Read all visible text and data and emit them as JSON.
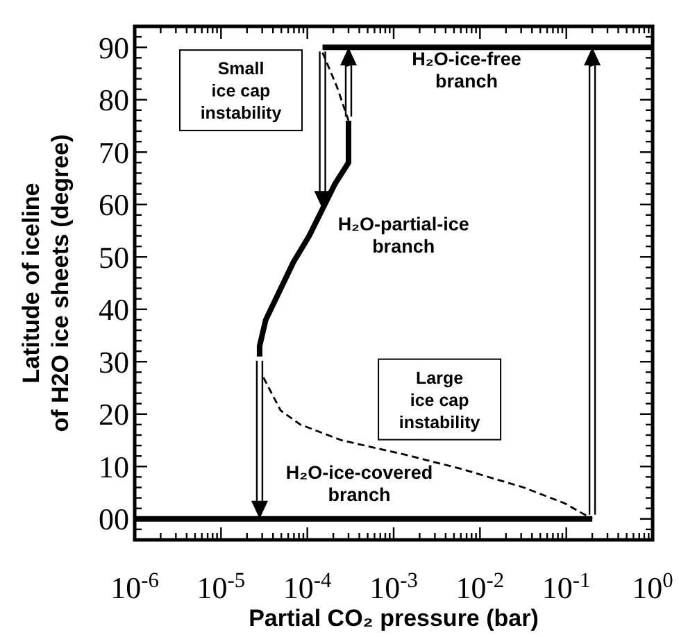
{
  "chart_data": {
    "type": "line",
    "xlabel": "Partial CO₂ pressure (bar)",
    "ylabel": "Latitude of iceline\nof H2O ice sheets (degree)",
    "log": "x",
    "grid": false,
    "marker": "none",
    "xlim": [
      1e-06,
      1
    ],
    "ylim": [
      -4,
      94
    ],
    "xticks": [
      {
        "value": 1e-06,
        "label": "10$^{-6}$"
      },
      {
        "value": 2e-06,
        "label": null
      },
      {
        "value": 3e-06,
        "label": null
      },
      {
        "value": 4e-06,
        "label": null
      },
      {
        "value": 5e-06,
        "label": null
      },
      {
        "value": 6e-06,
        "label": null
      },
      {
        "value": 7e-06,
        "label": null
      },
      {
        "value": 8e-06,
        "label": null
      },
      {
        "value": 9e-06,
        "label": null
      },
      {
        "value": 1e-05,
        "label": "10$^{-5}$"
      },
      {
        "value": 2e-05,
        "label": null
      },
      {
        "value": 3e-05,
        "label": null
      },
      {
        "value": 4e-05,
        "label": null
      },
      {
        "value": 5e-05,
        "label": null
      },
      {
        "value": 6e-05,
        "label": null
      },
      {
        "value": 7e-05,
        "label": null
      },
      {
        "value": 8e-05,
        "label": null
      },
      {
        "value": 9e-05,
        "label": null
      },
      {
        "value": 0.0001,
        "label": "10$^{-4}$"
      },
      {
        "value": 0.0002,
        "label": null
      },
      {
        "value": 0.0003,
        "label": null
      },
      {
        "value": 0.0004,
        "label": null
      },
      {
        "value": 0.0005,
        "label": null
      },
      {
        "value": 0.0006,
        "label": null
      },
      {
        "value": 0.0007,
        "label": null
      },
      {
        "value": 0.0008,
        "label": null
      },
      {
        "value": 0.0009,
        "label": null
      },
      {
        "value": 0.001,
        "label": "10$^{-3}$"
      },
      {
        "value": 0.002,
        "label": null
      },
      {
        "value": 0.003,
        "label": null
      },
      {
        "value": 0.004,
        "label": null
      },
      {
        "value": 0.005,
        "label": null
      },
      {
        "value": 0.006,
        "label": null
      },
      {
        "value": 0.007,
        "label": null
      },
      {
        "value": 0.008,
        "label": null
      },
      {
        "value": 0.009,
        "label": null
      },
      {
        "value": 0.01,
        "label": "10$^{-2}$"
      },
      {
        "value": 0.02,
        "label": null
      },
      {
        "value": 0.03,
        "label": null
      },
      {
        "value": 0.04,
        "label": null
      },
      {
        "value": 0.05,
        "label": null
      },
      {
        "value": 0.06,
        "label": null
      },
      {
        "value": 0.07,
        "label": null
      },
      {
        "value": 0.08,
        "label": null
      },
      {
        "value": 0.09,
        "label": null
      },
      {
        "value": 0.1,
        "label": "10$^{-1}$"
      },
      {
        "value": 0.2,
        "label": null
      },
      {
        "value": 0.3,
        "label": null
      },
      {
        "value": 0.4,
        "label": null
      },
      {
        "value": 0.5,
        "label": null
      },
      {
        "value": 0.6,
        "label": null
      },
      {
        "value": 0.7,
        "label": null
      },
      {
        "value": 0.8,
        "label": null
      },
      {
        "value": 0.9,
        "label": null
      },
      {
        "value": 1,
        "label": "10$^{0}$"
      }
    ],
    "yticks": [
      {
        "value": -2,
        "label": null
      },
      {
        "value": 0,
        "label": "00"
      },
      {
        "value": 2,
        "label": null
      },
      {
        "value": 4,
        "label": null
      },
      {
        "value": 6,
        "label": null
      },
      {
        "value": 8,
        "label": null
      },
      10,
      {
        "value": 12,
        "label": null
      },
      {
        "value": 14,
        "label": null
      },
      {
        "value": 16,
        "label": null
      },
      {
        "value": 18,
        "label": null
      },
      20,
      {
        "value": 22,
        "label": null
      },
      {
        "value": 24,
        "label": null
      },
      {
        "value": 26,
        "label": null
      },
      {
        "value": 28,
        "label": null
      },
      30,
      {
        "value": 32,
        "label": null
      },
      {
        "value": 34,
        "label": null
      },
      {
        "value": 36,
        "label": null
      },
      {
        "value": 38,
        "label": null
      },
      40,
      {
        "value": 42,
        "label": null
      },
      {
        "value": 44,
        "label": null
      },
      {
        "value": 46,
        "label": null
      },
      {
        "value": 48,
        "label": null
      },
      50,
      {
        "value": 52,
        "label": null
      },
      {
        "value": 54,
        "label": null
      },
      {
        "value": 56,
        "label": null
      },
      {
        "value": 58,
        "label": null
      },
      60,
      {
        "value": 62,
        "label": null
      },
      {
        "value": 64,
        "label": null
      },
      {
        "value": 66,
        "label": null
      },
      {
        "value": 68,
        "label": null
      },
      70,
      {
        "value": 72,
        "label": null
      },
      {
        "value": 74,
        "label": null
      },
      {
        "value": 76,
        "label": null
      },
      {
        "value": 78,
        "label": null
      },
      80,
      {
        "value": 82,
        "label": null
      },
      {
        "value": 84,
        "label": null
      },
      {
        "value": 86,
        "label": null
      },
      {
        "value": 88,
        "label": null
      },
      90,
      {
        "value": 92,
        "label": null
      }
    ],
    "series": [
      {
        "color": "#000000",
        "line_style": "solid",
        "x": [
          0.00015,
          1
        ],
        "values": [
          90,
          90
        ]
      },
      {
        "color": "#000000",
        "line_style": "solid",
        "x": [
          2.8e-05,
          2.8e-05,
          3.3e-05,
          6.9e-05,
          0.000105,
          0.00021,
          0.0003,
          0.0003
        ],
        "values": [
          31,
          33,
          38,
          49,
          54,
          64,
          68,
          76
        ]
      },
      {
        "color": "#000000",
        "line_style": "solid",
        "x": [
          1e-06,
          0.2
        ],
        "values": [
          0,
          0
        ]
      },
      {
        "color": "#000000",
        "line_style": "dashed",
        "x": [
          0.00015,
          0.00022,
          0.0003
        ],
        "values": [
          89,
          82.5,
          76
        ]
      },
      {
        "color": "#000000",
        "line_style": "dashed",
        "x": [
          3.1e-05,
          4.9e-05,
          8.3e-05,
          0.00025,
          0.0014,
          0.0062,
          0.032,
          0.095,
          0.2
        ],
        "values": [
          27,
          20.7,
          18,
          15,
          12.2,
          9.5,
          6,
          3,
          0
        ]
      }
    ],
    "annotations": [
      "Small\nice cap\ninstability",
      "Large\nice cap\ninstability",
      "H₂O-ice-free\nbranch",
      "H₂O-partial-ice\nbranch",
      "H₂O-ice-covered\nbranch"
    ]
  }
}
